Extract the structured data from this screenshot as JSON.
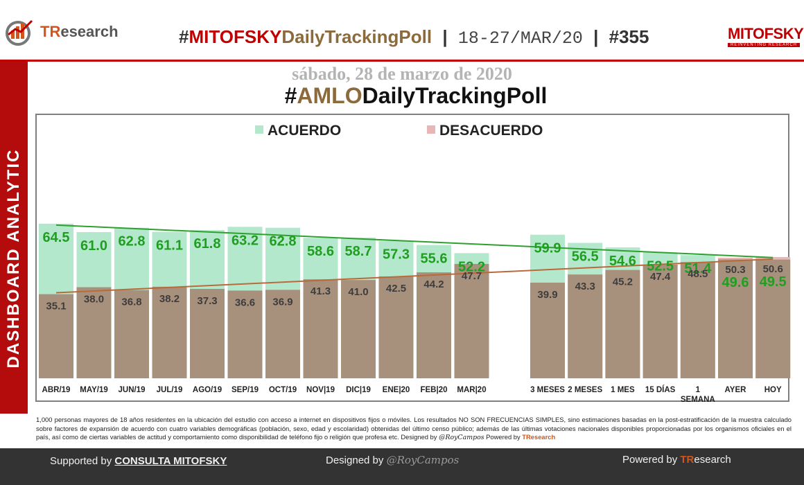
{
  "header": {
    "logo_left": {
      "prefix": "TR",
      "suffix": "esearch"
    },
    "headline_hash": "#",
    "headline_brand": "MITOFSKY",
    "headline_tail": "DailyTrackingPoll",
    "separator": "|",
    "dates": "18-27/MAR/20",
    "issue": "#355",
    "logo_right": "MITOFSKY",
    "logo_right_sub": "REINVENTING RESEARCH"
  },
  "sidebar": {
    "label": "DASHBOARD ANALYTIC"
  },
  "date_line": "sábado, 28 de marzo de 2020",
  "chart_title": {
    "hash": "#",
    "amlo": "AMLO",
    "rest": "DailyTrackingPoll"
  },
  "colors": {
    "acuerdo_bar": "#b3e8cc",
    "desacuerdo_bar": "#e8b6b6",
    "brown_bar": "#a8917c",
    "acuerdo_label": "#1f9e1f",
    "acuerdo_trend": "#2ea02e",
    "desacuerdo_trend": "#b86a3a",
    "accent_red": "#c00000"
  },
  "chart_data": {
    "type": "bar",
    "categories": [
      "ABR/19",
      "MAY/19",
      "JUN/19",
      "JUL/19",
      "AGO/19",
      "SEP/19",
      "OCT/19",
      "NOV|19",
      "DIC|19",
      "ENE|20",
      "FEB|20",
      "MAR|20",
      "3 MESES",
      "2 MESES",
      "1 MES",
      "15 DÍAS",
      "1 SEMANA",
      "AYER",
      "HOY"
    ],
    "series": [
      {
        "name": "ACUERDO",
        "values": [
          64.5,
          61.0,
          62.8,
          61.1,
          61.8,
          63.2,
          62.8,
          58.6,
          58.7,
          57.3,
          55.6,
          52.2,
          59.9,
          56.5,
          54.6,
          52.5,
          51.4,
          49.6,
          49.5
        ]
      },
      {
        "name": "DESACUERDO",
        "values": [
          35.1,
          38.0,
          36.8,
          38.2,
          37.3,
          36.6,
          36.9,
          41.3,
          41.0,
          42.5,
          44.2,
          47.7,
          39.9,
          43.3,
          45.2,
          47.4,
          48.5,
          50.3,
          50.6
        ]
      }
    ],
    "legend": "top-center",
    "trendlines": true,
    "grid": false
  },
  "footnote": "1,000 personas mayores de 18 años residentes en la ubicación del estudio con acceso a internet en dispositivos fijos o móviles. Los resultados NO SON FRECUENCIAS SIMPLES, sino estimaciones basadas en la post-estratificación de la muestra calculado sobre factores de expansión de acuerdo con cuatro variables demográficas (población, sexo, edad y escolaridad) obtenidas del último censo público; además de las últimas votaciones nacionales disponibles proporcionadas por los organismos oficiales en el país, así como de ciertas variables de actitud y comportamiento como disponibilidad de teléfono fijo o religión que profesa etc. Designed by",
  "footnote_sig": "@RoyCampos",
  "footnote_powered": "Powered by",
  "footnote_logo": "TResearch",
  "footer": {
    "supported": "Supported by",
    "consulta": "CONSULTA MITOFSKY",
    "designed": "Designed by",
    "designer": "@RoyCampos",
    "powered": "Powered by",
    "tr_prefix": "TR",
    "tr_suffix": "esearch"
  }
}
